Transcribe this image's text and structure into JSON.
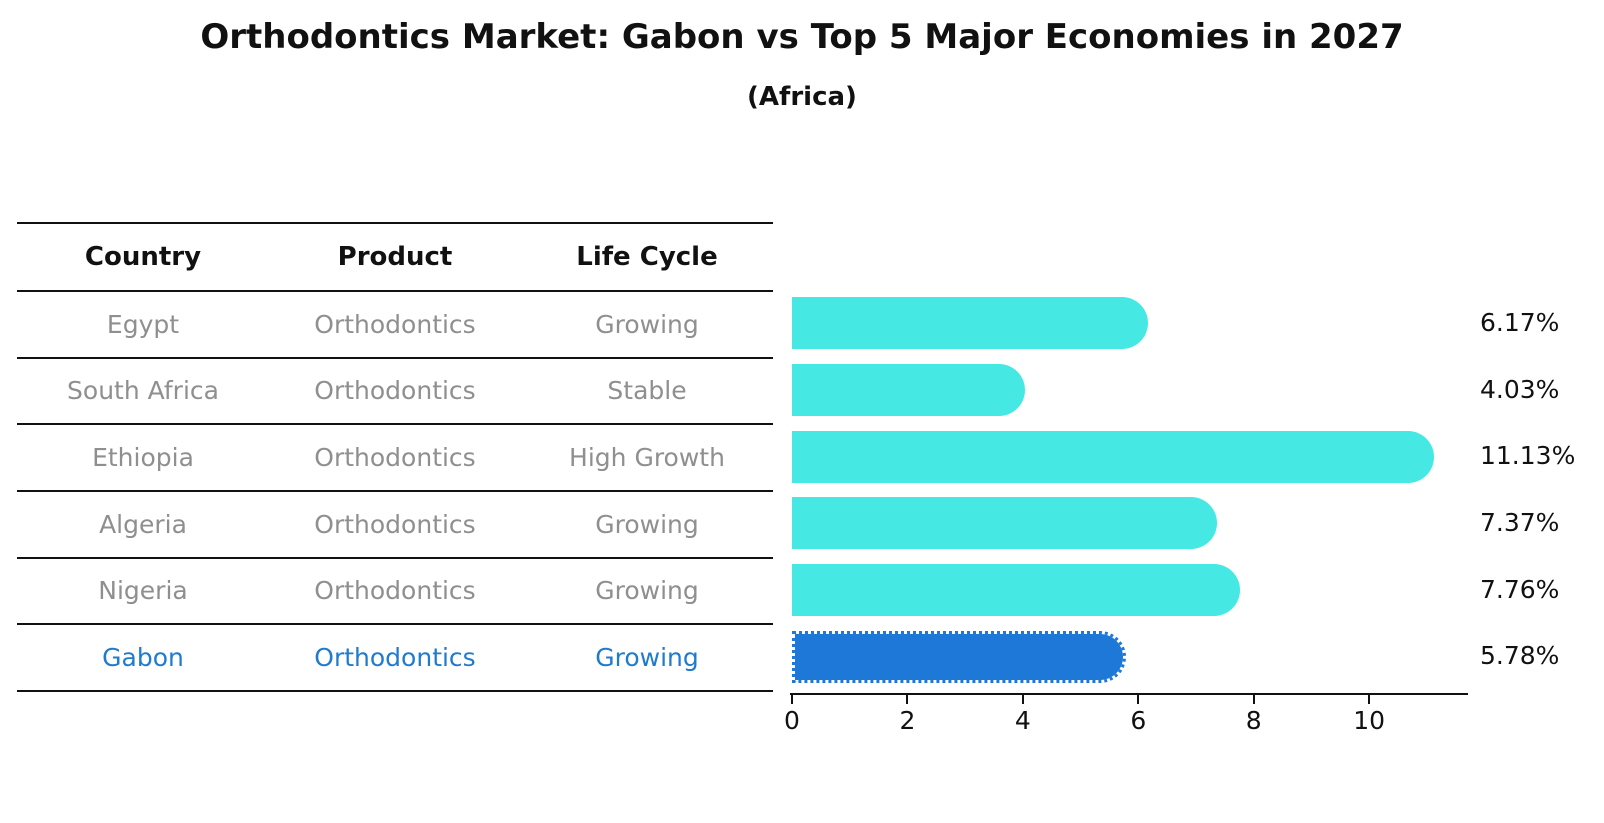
{
  "title": "Orthodontics Market: Gabon vs Top 5 Major Economies in 2027",
  "subtitle": "(Africa)",
  "table": {
    "headers": [
      "Country",
      "Product",
      "Life Cycle"
    ],
    "rows": [
      {
        "country": "Egypt",
        "product": "Orthodontics",
        "life_cycle": "Growing",
        "highlight": false
      },
      {
        "country": "South Africa",
        "product": "Orthodontics",
        "life_cycle": "Stable",
        "highlight": false
      },
      {
        "country": "Ethiopia",
        "product": "Orthodontics",
        "life_cycle": "High Growth",
        "highlight": false
      },
      {
        "country": "Algeria",
        "product": "Orthodontics",
        "life_cycle": "Growing",
        "highlight": false
      },
      {
        "country": "Nigeria",
        "product": "Orthodontics",
        "life_cycle": "Growing",
        "highlight": false
      },
      {
        "country": "Gabon",
        "product": "Orthodontics",
        "life_cycle": "Growing",
        "highlight": true
      }
    ]
  },
  "chart_data": {
    "type": "bar",
    "orientation": "horizontal",
    "title": "Orthodontics Market: Gabon vs Top 5 Major Economies in 2027",
    "subtitle": "(Africa)",
    "categories": [
      "Egypt",
      "South Africa",
      "Ethiopia",
      "Algeria",
      "Nigeria",
      "Gabon"
    ],
    "values": [
      6.17,
      4.03,
      11.13,
      7.37,
      7.76,
      5.78
    ],
    "value_labels": [
      "6.17%",
      "4.03%",
      "11.13%",
      "7.37%",
      "7.76%",
      "5.78%"
    ],
    "xlabel": "",
    "ylabel": "",
    "xlim": [
      0,
      11.73
    ],
    "x_ticks": [
      0,
      2,
      4,
      6,
      8,
      10
    ],
    "grid": false,
    "legend": false,
    "highlight_category": "Gabon",
    "highlight_bar_style": "dotted-border",
    "colors": {
      "default_bar": "#45e8e3",
      "highlight_bar": "#1e78d7",
      "highlight_text": "#1f7bce",
      "muted_text": "#8f8f8f",
      "axis": "#111111",
      "label_text": "#111111"
    }
  }
}
